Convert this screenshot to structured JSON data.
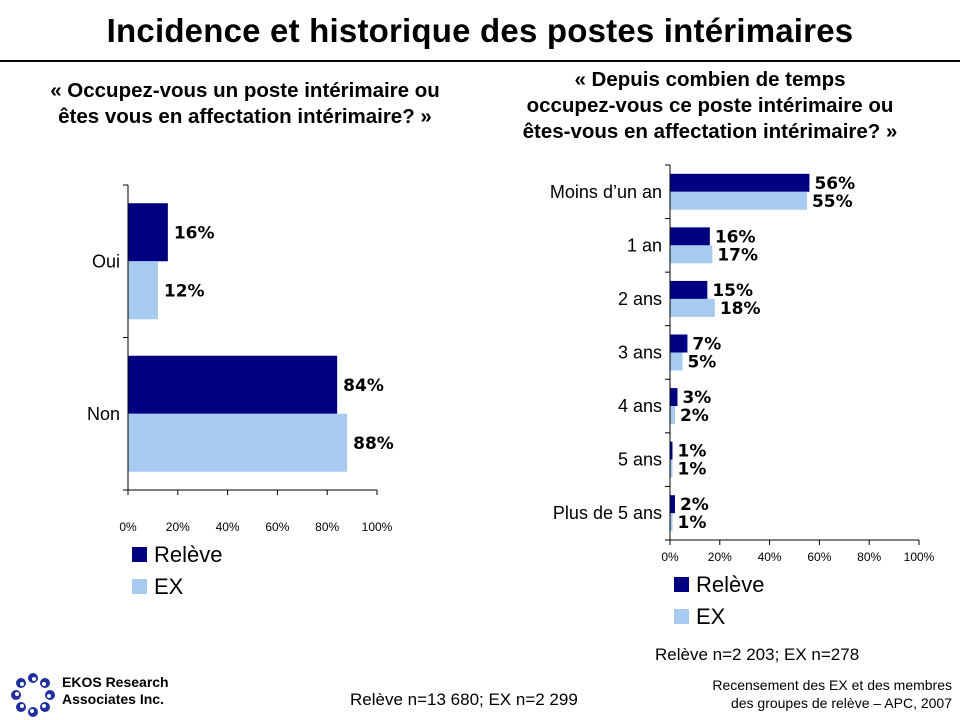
{
  "title": "Incidence et historique des postes intérimaires",
  "colors": {
    "releve": "#000080",
    "ex": "#a6caf0"
  },
  "chart_data": [
    {
      "type": "bar",
      "orientation": "horizontal",
      "title": "« Occupez-vous un poste intérimaire ou êtes vous en affectation intérimaire? »",
      "title_lines": [
        "« Occupez-vous un poste intérimaire ou",
        "êtes vous en affectation intérimaire? »"
      ],
      "categories": [
        "Oui",
        "Non"
      ],
      "series": [
        {
          "name": "Relève",
          "values": [
            16,
            84
          ]
        },
        {
          "name": "EX",
          "values": [
            12,
            88
          ]
        }
      ],
      "xlim": [
        0,
        100
      ],
      "xticks": [
        "0%",
        "20%",
        "40%",
        "60%",
        "80%",
        "100%"
      ],
      "legend": [
        "Relève",
        "EX"
      ],
      "note": "Relève n=13 680; EX n=2 299"
    },
    {
      "type": "bar",
      "orientation": "horizontal",
      "title": "« Depuis combien de temps occupez-vous ce poste intérimaire ou êtes-vous en affectation intérimaire? »",
      "title_lines": [
        "« Depuis combien de temps",
        "occupez-vous ce poste intérimaire ou",
        "êtes-vous en affectation intérimaire? »"
      ],
      "categories": [
        "Moins d’un an",
        "1 an",
        "2 ans",
        "3 ans",
        "4 ans",
        "5 ans",
        "Plus de 5 ans"
      ],
      "series": [
        {
          "name": "Relève",
          "values": [
            56,
            16,
            15,
            7,
            3,
            1,
            2
          ]
        },
        {
          "name": "EX",
          "values": [
            55,
            17,
            18,
            5,
            2,
            1,
            1
          ]
        }
      ],
      "xlim": [
        0,
        100
      ],
      "xticks": [
        "0%",
        "20%",
        "40%",
        "60%",
        "80%",
        "100%"
      ],
      "legend": [
        "Relève",
        "EX"
      ],
      "note": "Relève n=2 203; EX n=278"
    }
  ],
  "footer": {
    "logo_line1": "EKOS Research",
    "logo_line2": "Associates Inc.",
    "source_line1": "Recensement des EX et des membres",
    "source_line2": "des groupes de relève – APC, 2007"
  }
}
